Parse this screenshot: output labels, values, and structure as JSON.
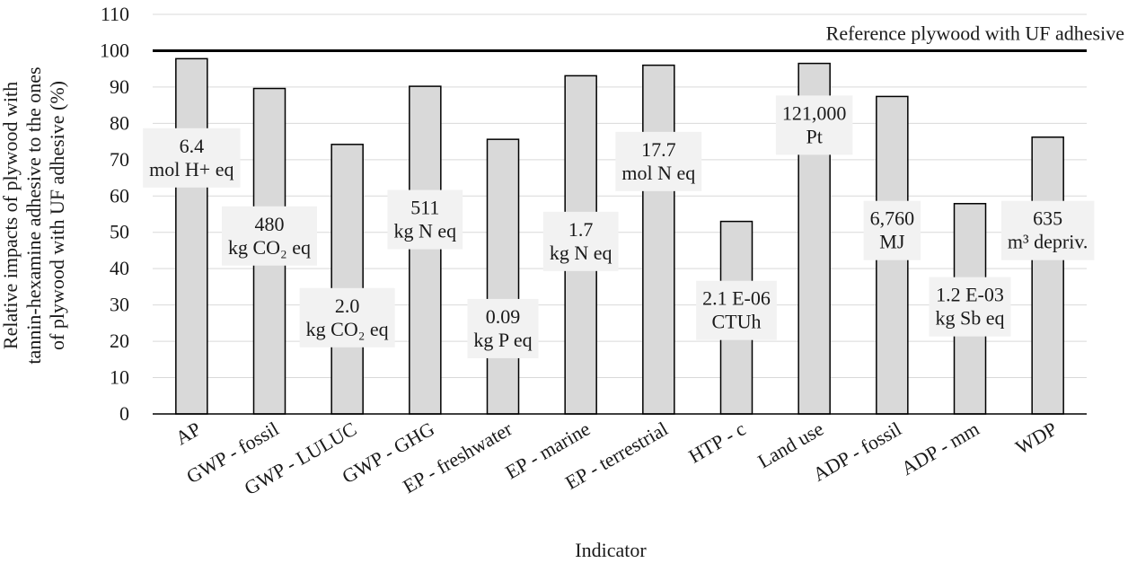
{
  "chart_data": {
    "type": "bar",
    "title": "",
    "xlabel": "Indicator",
    "ylabel_lines": [
      "Relative impacts of plywood with",
      "tannin-hexamine adhesive to the ones",
      "of plywood with UF adhesive (%)"
    ],
    "ylim": [
      0,
      110
    ],
    "yticks": [
      0,
      10,
      20,
      30,
      40,
      50,
      60,
      70,
      80,
      90,
      100,
      110
    ],
    "categories": [
      "AP",
      "GWP - fossil",
      "GWP - LULUC",
      "GWP - GHG",
      "EP - freshwater",
      "EP - marine",
      "EP - terrestrial",
      "HTP - c",
      "Land use",
      "ADP - fossil",
      "ADP - mm",
      "WDP"
    ],
    "values": [
      97.8,
      89.6,
      74.2,
      90.2,
      75.6,
      93.1,
      96.0,
      53.0,
      96.5,
      87.4,
      57.9,
      76.2
    ],
    "reference": {
      "value": 100,
      "label": "Reference plywood with UF adhesive"
    },
    "annotations": [
      {
        "category": "AP",
        "y": 70.5,
        "lines": [
          "6.4",
          "mol H+ eq"
        ]
      },
      {
        "category": "GWP - fossil",
        "y": 49.0,
        "lines": [
          "480",
          "kg CO₂ eq"
        ]
      },
      {
        "category": "GWP - LULUC",
        "y": 26.5,
        "lines": [
          "2.0",
          "kg CO₂ eq"
        ]
      },
      {
        "category": "GWP - GHG",
        "y": 53.5,
        "lines": [
          "511",
          "kg N eq"
        ]
      },
      {
        "category": "EP - freshwater",
        "y": 23.5,
        "lines": [
          "0.09",
          "kg P eq"
        ]
      },
      {
        "category": "EP - marine",
        "y": 47.5,
        "lines": [
          "1.7",
          "kg N eq"
        ]
      },
      {
        "category": "EP - terrestrial",
        "y": 69.5,
        "lines": [
          "17.7",
          "mol N eq"
        ]
      },
      {
        "category": "HTP - c",
        "y": 28.5,
        "lines": [
          "2.1 E-06",
          "CTUh"
        ]
      },
      {
        "category": "Land use",
        "y": 79.5,
        "lines": [
          "121,000",
          "Pt"
        ]
      },
      {
        "category": "ADP - fossil",
        "y": 50.5,
        "lines": [
          "6,760",
          "MJ"
        ]
      },
      {
        "category": "ADP - mm",
        "y": 29.5,
        "lines": [
          "1.2 E-03",
          "kg Sb eq"
        ]
      },
      {
        "category": "WDP",
        "y": 50.5,
        "lines": [
          "635",
          "m³ depriv."
        ]
      }
    ],
    "colors": {
      "bar_fill": "#d9d9d9",
      "bar_stroke": "#000000",
      "label_bg": "#f2f2f2",
      "gridline": "#d9d9d9"
    }
  }
}
